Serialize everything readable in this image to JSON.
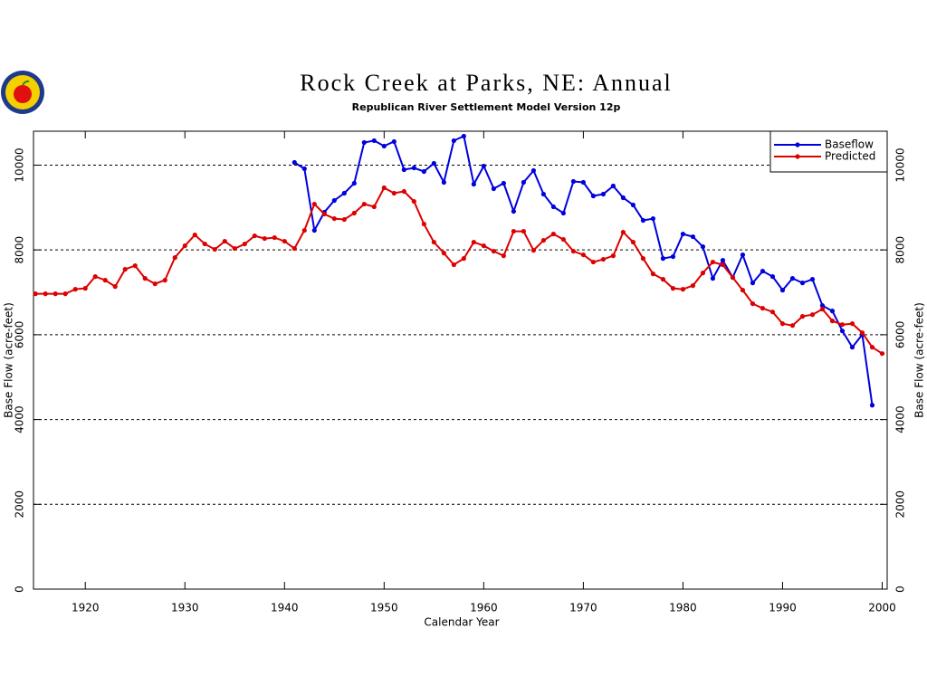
{
  "chart_data": {
    "type": "line",
    "title": "Rock Creek at Parks, NE: Annual",
    "subtitle": "Republican River Settlement Model Version 12p",
    "x_label": "Calendar Year",
    "y_label": "Base Flow (acre-feet)",
    "x": [
      1915,
      1916,
      1917,
      1918,
      1919,
      1920,
      1921,
      1922,
      1923,
      1924,
      1925,
      1926,
      1927,
      1928,
      1929,
      1930,
      1931,
      1932,
      1933,
      1934,
      1935,
      1936,
      1937,
      1938,
      1939,
      1940,
      1941,
      1942,
      1943,
      1944,
      1945,
      1946,
      1947,
      1948,
      1949,
      1950,
      1951,
      1952,
      1953,
      1954,
      1955,
      1956,
      1957,
      1958,
      1959,
      1960,
      1961,
      1962,
      1963,
      1964,
      1965,
      1966,
      1967,
      1968,
      1969,
      1970,
      1971,
      1972,
      1973,
      1974,
      1975,
      1976,
      1977,
      1978,
      1979,
      1980,
      1981,
      1982,
      1983,
      1984,
      1985,
      1986,
      1987,
      1988,
      1989,
      1990,
      1991,
      1992,
      1993,
      1994,
      1995,
      1996,
      1997,
      1998,
      1999,
      2000
    ],
    "series": [
      {
        "name": "Baseflow",
        "color": "#0000dd",
        "values": [
          null,
          null,
          null,
          null,
          null,
          null,
          null,
          null,
          null,
          null,
          null,
          null,
          null,
          null,
          null,
          null,
          null,
          null,
          null,
          null,
          null,
          null,
          null,
          null,
          null,
          null,
          10064,
          9915,
          8462,
          8889,
          9167,
          9338,
          9573,
          10534,
          10577,
          10449,
          10556,
          9893,
          9936,
          9850,
          10043,
          9594,
          10577,
          10684,
          9551,
          9979,
          9444,
          9573,
          8910,
          9594,
          9872,
          9316,
          9017,
          8868,
          9615,
          9594,
          9274,
          9316,
          9509,
          9231,
          9060,
          8697,
          8739,
          7799,
          7842,
          8376,
          8312,
          8077,
          7329,
          7756,
          7350,
          7885,
          7222,
          7500,
          7372,
          7051,
          7329,
          7222,
          7308,
          6688,
          6560,
          6090,
          5705,
          6004,
          4338,
          null
        ]
      },
      {
        "name": "Predicted",
        "color": "#dd0000",
        "values": [
          6966,
          6966,
          6966,
          6966,
          7073,
          7094,
          7372,
          7286,
          7137,
          7543,
          7628,
          7329,
          7201,
          7286,
          7820,
          8098,
          8355,
          8141,
          8013,
          8205,
          8034,
          8141,
          8333,
          8269,
          8291,
          8205,
          8034,
          8462,
          9081,
          8846,
          8739,
          8718,
          8868,
          9081,
          9017,
          9466,
          9338,
          9380,
          9145,
          8611,
          8184,
          7927,
          7650,
          7799,
          8184,
          8098,
          7970,
          7863,
          8440,
          8440,
          7991,
          8226,
          8376,
          8248,
          7970,
          7885,
          7714,
          7778,
          7863,
          8419,
          8184,
          7799,
          7436,
          7308,
          7094,
          7073,
          7158,
          7457,
          7714,
          7650,
          7350,
          7051,
          6731,
          6624,
          6538,
          6261,
          6218,
          6432,
          6474,
          6603,
          6325,
          6239,
          6261,
          6047,
          5705,
          5556
        ]
      }
    ],
    "xlim": [
      1914.8,
      2000.5
    ],
    "xticks": [
      1920,
      1930,
      1940,
      1950,
      1960,
      1970,
      1980,
      1990,
      2000
    ],
    "ylim": [
      0,
      10800
    ],
    "yticks": [
      0,
      2000,
      4000,
      6000,
      8000,
      10000
    ],
    "grid": true,
    "legend": "upper right"
  }
}
